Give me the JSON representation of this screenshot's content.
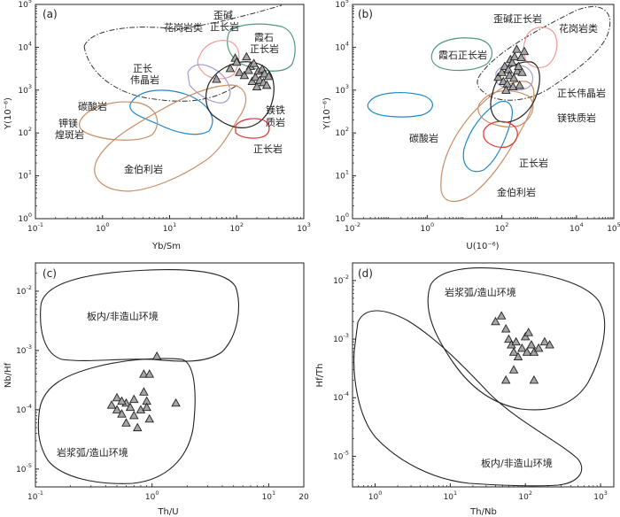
{
  "chart_data": [
    {
      "type": "scatter",
      "panel": "(a)",
      "xlabel": "Yb/Sm",
      "ylabel": "Y(10⁻⁶)",
      "x_scale": "log",
      "y_scale": "log",
      "xlim": [
        0.1,
        1000
      ],
      "ylim": [
        1,
        100000
      ],
      "x_ticks": [
        {
          "b": "10",
          "e": "-1"
        },
        {
          "b": "10",
          "e": "0"
        },
        {
          "b": "10",
          "e": "1"
        },
        {
          "b": "10",
          "e": "2"
        },
        {
          "b": "10",
          "e": "3"
        }
      ],
      "y_ticks": [
        {
          "b": "10",
          "e": "0"
        },
        {
          "b": "10",
          "e": "1"
        },
        {
          "b": "10",
          "e": "2"
        },
        {
          "b": "10",
          "e": "3"
        },
        {
          "b": "10",
          "e": "4"
        },
        {
          "b": "10",
          "e": "5"
        }
      ],
      "fields": [
        {
          "label": "花岗岩类",
          "color": "#222222"
        },
        {
          "label": "歪碱",
          "color": "#222222"
        },
        {
          "label": "正长岩",
          "color": "#222222"
        },
        {
          "label": "霞石",
          "color": "#222222"
        },
        {
          "label": "正长岩",
          "color": "#222222"
        },
        {
          "label": "正长",
          "color": "#222222"
        },
        {
          "label": "伟晶岩",
          "color": "#222222"
        },
        {
          "label": "碳酸岩",
          "color": "#222222"
        },
        {
          "label": "钾镁",
          "color": "#222222"
        },
        {
          "label": "煌斑岩",
          "color": "#222222"
        },
        {
          "label": "金伯利岩",
          "color": "#222222"
        },
        {
          "label": "镁铁",
          "color": "#222222"
        },
        {
          "label": "质岩",
          "color": "#222222"
        },
        {
          "label": "正长岩",
          "color": "#222222"
        }
      ],
      "points": [
        [
          50,
          1800
        ],
        [
          80,
          3200
        ],
        [
          95,
          5600
        ],
        [
          100,
          4500
        ],
        [
          110,
          2600
        ],
        [
          130,
          2200
        ],
        [
          140,
          6000
        ],
        [
          160,
          3600
        ],
        [
          170,
          1600
        ],
        [
          180,
          4200
        ],
        [
          190,
          2000
        ],
        [
          200,
          1200
        ],
        [
          210,
          2800
        ],
        [
          220,
          1700
        ],
        [
          240,
          3100
        ],
        [
          250,
          1500
        ],
        [
          260,
          2400
        ],
        [
          280,
          1300
        ],
        [
          300,
          2100
        ],
        [
          150,
          2900
        ]
      ]
    },
    {
      "type": "scatter",
      "panel": "(b)",
      "xlabel": "U(10⁻⁶)",
      "ylabel": "Y(10⁻⁶)",
      "x_scale": "log",
      "y_scale": "log",
      "xlim": [
        0.01,
        100000
      ],
      "ylim": [
        1,
        100000
      ],
      "x_ticks": [
        {
          "b": "10",
          "e": "-2"
        },
        {
          "b": "10",
          "e": "0"
        },
        {
          "b": "10",
          "e": "2"
        },
        {
          "b": "10",
          "e": "4"
        },
        {
          "b": "10",
          "e": "5"
        }
      ],
      "y_ticks": [
        {
          "b": "10",
          "e": "0"
        },
        {
          "b": "10",
          "e": "1"
        },
        {
          "b": "10",
          "e": "2"
        },
        {
          "b": "10",
          "e": "3"
        },
        {
          "b": "10",
          "e": "4"
        },
        {
          "b": "10",
          "e": "5"
        }
      ],
      "fields": [
        {
          "label": "歪碱正长岩",
          "color": "#222222"
        },
        {
          "label": "花岗岩类",
          "color": "#222222"
        },
        {
          "label": "霞石正长岩",
          "color": "#222222"
        },
        {
          "label": "正长伟晶岩",
          "color": "#222222"
        },
        {
          "label": "镁铁质岩",
          "color": "#222222"
        },
        {
          "label": "碳酸岩",
          "color": "#222222"
        },
        {
          "label": "正长岩",
          "color": "#222222"
        },
        {
          "label": "金伯利岩",
          "color": "#222222"
        }
      ],
      "points": [
        [
          80,
          2000
        ],
        [
          100,
          2600
        ],
        [
          110,
          1600
        ],
        [
          120,
          3600
        ],
        [
          140,
          1400
        ],
        [
          150,
          3000
        ],
        [
          160,
          2200
        ],
        [
          170,
          5200
        ],
        [
          190,
          4400
        ],
        [
          200,
          1200
        ],
        [
          210,
          1900
        ],
        [
          220,
          6000
        ],
        [
          250,
          9000
        ],
        [
          260,
          2800
        ],
        [
          280,
          3600
        ],
        [
          300,
          1300
        ],
        [
          330,
          5800
        ],
        [
          350,
          2600
        ],
        [
          400,
          8000
        ],
        [
          130,
          1000
        ]
      ]
    },
    {
      "type": "scatter",
      "panel": "(c)",
      "xlabel": "Th/U",
      "ylabel": "Nb/Hf",
      "x_scale": "log",
      "y_scale": "log",
      "xlim": [
        0.1,
        20
      ],
      "ylim": [
        5e-06,
        0.03
      ],
      "x_ticks": [
        {
          "b": "10",
          "e": "-1"
        },
        {
          "b": "10",
          "e": "0"
        },
        {
          "b": "10",
          "e": "1"
        },
        {
          "b": "20",
          "e": ""
        }
      ],
      "y_ticks": [
        {
          "b": "10",
          "e": "-5"
        },
        {
          "b": "10",
          "e": "-4"
        },
        {
          "b": "10",
          "e": "-3"
        },
        {
          "b": "10",
          "e": "-2"
        }
      ],
      "fields": [
        {
          "label": "板内/非造山环境",
          "color": "#222222"
        },
        {
          "label": "岩浆弧/造山环境",
          "color": "#222222"
        }
      ],
      "points": [
        [
          0.45,
          0.00012
        ],
        [
          0.5,
          0.00016
        ],
        [
          0.5,
          0.0001
        ],
        [
          0.55,
          8.5e-05
        ],
        [
          0.6,
          0.00013
        ],
        [
          0.6,
          6e-05
        ],
        [
          0.65,
          0.00011
        ],
        [
          0.7,
          0.00015
        ],
        [
          0.7,
          8e-05
        ],
        [
          0.75,
          5e-05
        ],
        [
          0.8,
          0.0001
        ],
        [
          0.85,
          0.0002
        ],
        [
          0.9,
          0.00014
        ],
        [
          0.9,
          0.00011
        ],
        [
          0.85,
          0.0004
        ],
        [
          0.95,
          0.0004
        ],
        [
          1.1,
          0.0008
        ],
        [
          1.6,
          0.00013
        ],
        [
          0.95,
          7e-05
        ],
        [
          0.55,
          0.00014
        ]
      ]
    },
    {
      "type": "scatter",
      "panel": "(d)",
      "xlabel": "Th/Nb",
      "ylabel": "Hf/Th",
      "x_scale": "log",
      "y_scale": "log",
      "xlim": [
        0.5,
        1500
      ],
      "ylim": [
        3e-06,
        0.02
      ],
      "x_ticks": [
        {
          "b": "10",
          "e": "0"
        },
        {
          "b": "10",
          "e": "1"
        },
        {
          "b": "10",
          "e": "2"
        },
        {
          "b": "10",
          "e": "3"
        }
      ],
      "y_ticks": [
        {
          "b": "10",
          "e": "-5"
        },
        {
          "b": "10",
          "e": "-4"
        },
        {
          "b": "10",
          "e": "-3"
        },
        {
          "b": "10",
          "e": "-2"
        }
      ],
      "fields": [
        {
          "label": "岩浆弧/造山环境",
          "color": "#222222"
        },
        {
          "label": "板内/非造山环境",
          "color": "#222222"
        }
      ],
      "points": [
        [
          40,
          0.002
        ],
        [
          48,
          0.0025
        ],
        [
          55,
          0.0015
        ],
        [
          60,
          0.001
        ],
        [
          65,
          0.0008
        ],
        [
          70,
          0.0006
        ],
        [
          75,
          0.0009
        ],
        [
          80,
          0.0005
        ],
        [
          90,
          0.0007
        ],
        [
          100,
          0.0011
        ],
        [
          105,
          0.0006
        ],
        [
          110,
          0.0013
        ],
        [
          120,
          0.0008
        ],
        [
          130,
          0.0006
        ],
        [
          150,
          0.0007
        ],
        [
          180,
          0.0009
        ],
        [
          210,
          0.0008
        ],
        [
          55,
          0.0002
        ],
        [
          70,
          0.0003
        ],
        [
          130,
          0.0002
        ]
      ]
    }
  ],
  "colors": {
    "axis": "#222222",
    "point_fill": "#a6a6a6",
    "field_black": "#222222",
    "field_blue": "#1e88c8",
    "field_tan": "#c98d63",
    "field_red": "#e0322d",
    "field_green": "#4d9a78",
    "field_pink": "#f19a98",
    "field_purple": "#a69ed2"
  }
}
